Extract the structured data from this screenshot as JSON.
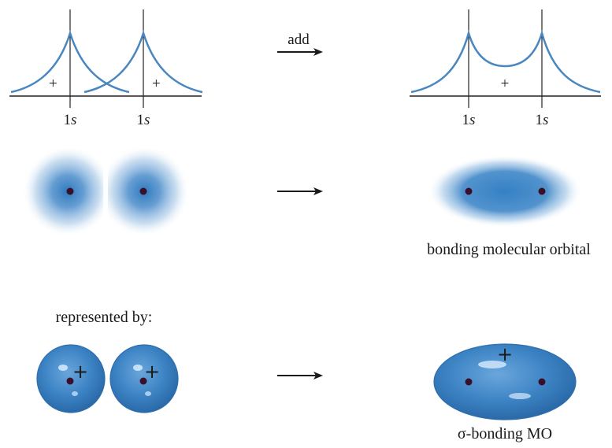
{
  "colors": {
    "curve": "#4a86bf",
    "cloud": "#3f86c6",
    "sphere": "#3c83c4",
    "sphere_edge": "#2f6fae",
    "nucleus": "#3a1028",
    "axis": "#222222",
    "text": "#1a1a1a"
  },
  "top_row": {
    "left_panel": {
      "sign_left": "+",
      "sign_right": "+",
      "label_left_num": "1",
      "label_left_sym": "s",
      "label_right_num": "1",
      "label_right_sym": "s"
    },
    "operation_label": "add",
    "right_panel": {
      "sign": "+",
      "label_left_num": "1",
      "label_left_sym": "s",
      "label_right_num": "1",
      "label_right_sym": "s"
    }
  },
  "middle_row": {
    "result_caption": "bonding molecular orbital"
  },
  "bottom_row": {
    "intro_text": "represented by:",
    "sphere_left_sign": "+",
    "sphere_right_sign": "+",
    "mo_sign": "+",
    "result_caption": "σ-bonding MO"
  },
  "icons": {
    "arrow": "right-arrow-icon"
  }
}
